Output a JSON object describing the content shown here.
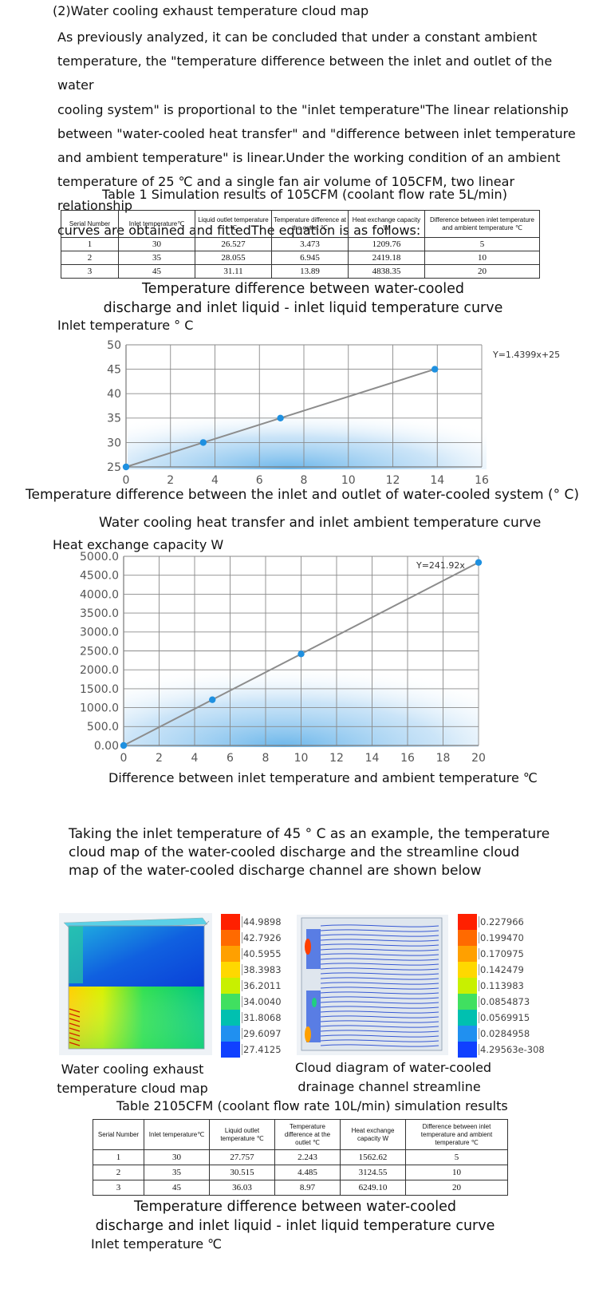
{
  "section_title": "(2)Water cooling exhaust temperature cloud map",
  "intro_lines": [
    "As previously analyzed, it can be concluded that under a constant ambient",
    "temperature, the \"temperature difference between the inlet and outlet of the water",
    "cooling system\" is proportional to the \"inlet temperature\"The linear relationship",
    "between \"water-cooled heat transfer\" and \"difference between inlet temperature",
    "and ambient temperature\" is linear.Under the working condition of an ambient",
    "temperature of 25 ℃ and a single fan air volume of 105CFM, two linear relationship",
    "curves are obtained and fittedThe equation is as follows:"
  ],
  "table1": {
    "caption": "Table 1 Simulation results of 105CFM (coolant flow rate 5L/min)",
    "headers": [
      "Serial Number",
      "Inlet temperature℃",
      "Liquid outlet temperature ℃",
      "Temperature difference at the outlet ℃",
      "Heat exchange capacity W",
      "Difference between inlet temperature and ambient temperature ℃"
    ],
    "rows": [
      [
        "1",
        "30",
        "26.527",
        "3.473",
        "1209.76",
        "5"
      ],
      [
        "2",
        "35",
        "28.055",
        "6.945",
        "2419.18",
        "10"
      ],
      [
        "3",
        "45",
        "31.11",
        "13.89",
        "4838.35",
        "20"
      ]
    ]
  },
  "chart_data": [
    {
      "type": "line",
      "title": "Temperature difference between water-cooled discharge and inlet liquid - inlet liquid temperature curve",
      "ylabel": "Inlet temperature ° C",
      "xlabel": "Temperature difference between the inlet and outlet of water-cooled system (° C)",
      "annotation": "Y=1.4399x+25",
      "x_ticks": [
        "0",
        "2",
        "4",
        "6",
        "8",
        "10",
        "12",
        "14",
        "16"
      ],
      "y_ticks": [
        "25",
        "30",
        "35",
        "40",
        "45",
        "50"
      ],
      "xlim": [
        0,
        16
      ],
      "ylim": [
        25,
        50
      ],
      "x": [
        0,
        3.473,
        6.945,
        13.89
      ],
      "y": [
        25,
        30,
        35,
        45
      ],
      "line_color": "#8c8c8c",
      "marker_color": "#1e90e0",
      "grid": true
    },
    {
      "type": "line",
      "title": "Water cooling heat transfer and inlet ambient temperature curve",
      "ylabel": "Heat exchange capacity W",
      "xlabel": "Difference between inlet temperature and ambient temperature ℃",
      "annotation": "Y=241.92x",
      "x_ticks": [
        "0",
        "2",
        "4",
        "6",
        "8",
        "10",
        "12",
        "14",
        "16",
        "18",
        "20"
      ],
      "y_ticks": [
        "0.00",
        "500.0",
        "1000.0",
        "1500.0",
        "2000.0",
        "2500.0",
        "3000.0",
        "3500.0",
        "4000.0",
        "4500.0",
        "5000.0"
      ],
      "xlim": [
        0,
        20
      ],
      "ylim": [
        0,
        5000
      ],
      "x": [
        0,
        5,
        10,
        20
      ],
      "y": [
        0,
        1209.76,
        2419.18,
        4838.35
      ],
      "line_color": "#8c8c8c",
      "marker_color": "#1e90e0",
      "grid": true
    }
  ],
  "example_lines": [
    "Taking the inlet temperature of 45 ° C as an example, the temperature",
    "cloud map of the water-cooled discharge and the streamline cloud",
    "map of the water-cooled discharge channel are shown below"
  ],
  "figure_left": {
    "caption_lines": [
      "Water cooling exhaust",
      "temperature cloud map"
    ],
    "legend": [
      "44.9898",
      "42.7926",
      "40.5955",
      "38.3983",
      "36.2011",
      "34.0040",
      "31.8068",
      "29.6097",
      "27.4125"
    ]
  },
  "figure_right": {
    "caption_lines": [
      "Cloud diagram of water-cooled",
      "drainage channel streamline"
    ],
    "legend": [
      "0.227966",
      "0.199470",
      "0.170975",
      "0.142479",
      "0.113983",
      "0.0854873",
      "0.0569915",
      "0.0284958",
      "4.29563e-308"
    ]
  },
  "legend_colors": [
    "#ff2000",
    "#ff6a00",
    "#ffa000",
    "#ffd800",
    "#c8f000",
    "#40e060",
    "#00c0b0",
    "#2090f0",
    "#1040ff"
  ],
  "table2": {
    "caption": "Table 2105CFM (coolant flow rate 10L/min) simulation results",
    "headers": [
      "Serial Number",
      "Inlet temperature℃",
      "Liquid outlet temperature ℃",
      "Temperature difference at the outlet ℃",
      "Heat exchange capacity W",
      "Difference between inlet temperature and ambient temperature ℃"
    ],
    "rows": [
      [
        "1",
        "30",
        "27.757",
        "2.243",
        "1562.62",
        "5"
      ],
      [
        "2",
        "35",
        "30.515",
        "4.485",
        "3124.55",
        "10"
      ],
      [
        "3",
        "45",
        "36.03",
        "8.97",
        "6249.10",
        "20"
      ]
    ]
  },
  "bottom_chart": {
    "title_lines": [
      "Temperature difference between water-cooled",
      "discharge and inlet liquid - inlet liquid temperature curve"
    ],
    "ylabel": "Inlet temperature ℃"
  },
  "chart1_title_lines": [
    "Temperature difference between water-cooled",
    "discharge and inlet liquid - inlet liquid temperature curve"
  ]
}
